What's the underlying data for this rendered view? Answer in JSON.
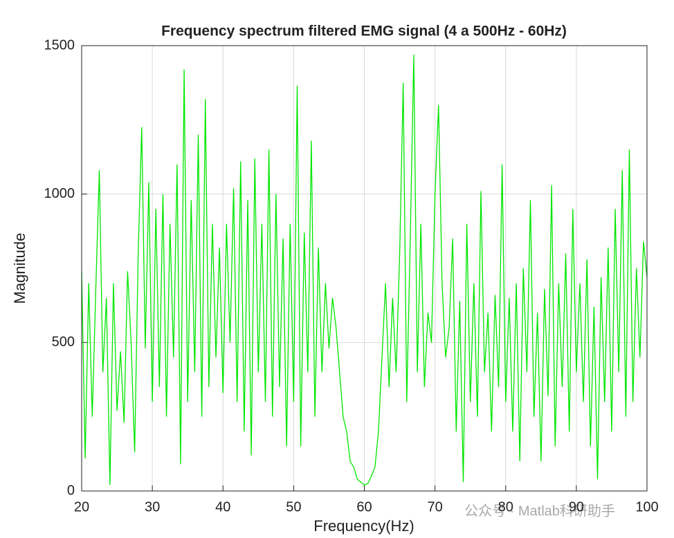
{
  "chart_data": {
    "type": "line",
    "title": "Frequency spectrum filtered EMG signal (4 a 500Hz - 60Hz)",
    "xlabel": "Frequency(Hz)",
    "ylabel": "Magnitude",
    "annotation": "公众号 · Matlab科研助手",
    "xlim": [
      20,
      100
    ],
    "ylim": [
      0,
      1500
    ],
    "xticks": [
      20,
      30,
      40,
      50,
      60,
      70,
      80,
      90,
      100
    ],
    "yticks": [
      0,
      500,
      1000,
      1500
    ],
    "grid": true,
    "series": [
      {
        "color": "#00e600",
        "x": [
          20,
          20.5,
          21,
          21.5,
          22,
          22.5,
          23,
          23.5,
          24,
          24.5,
          25,
          25.5,
          26,
          26.5,
          27,
          27.5,
          28,
          28.5,
          29,
          29.5,
          30,
          30.5,
          31,
          31.5,
          32,
          32.5,
          33,
          33.5,
          34,
          34.5,
          35,
          35.5,
          36,
          36.5,
          37,
          37.5,
          38,
          38.5,
          39,
          39.5,
          40,
          40.5,
          41,
          41.5,
          42,
          42.5,
          43,
          43.5,
          44,
          44.5,
          45,
          45.5,
          46,
          46.5,
          47,
          47.5,
          48,
          48.5,
          49,
          49.5,
          50,
          50.5,
          51,
          51.5,
          52,
          52.5,
          53,
          53.5,
          54,
          54.5,
          55,
          55.5,
          56,
          56.5,
          57,
          57.5,
          58,
          58.5,
          59,
          59.5,
          60,
          60.5,
          61,
          61.5,
          62,
          62.5,
          63,
          63.5,
          64,
          64.5,
          65,
          65.5,
          66,
          66.5,
          67,
          67.5,
          68,
          68.5,
          69,
          69.5,
          70,
          70.5,
          71,
          71.5,
          72,
          72.5,
          73,
          73.5,
          74,
          74.5,
          75,
          75.5,
          76,
          76.5,
          77,
          77.5,
          78,
          78.5,
          79,
          79.5,
          80,
          80.5,
          81,
          81.5,
          82,
          82.5,
          83,
          83.5,
          84,
          84.5,
          85,
          85.5,
          86,
          86.5,
          87,
          87.5,
          88,
          88.5,
          89,
          89.5,
          90,
          90.5,
          91,
          91.5,
          92,
          92.5,
          93,
          93.5,
          94,
          94.5,
          95,
          95.5,
          96,
          96.5,
          97,
          97.5,
          98,
          98.5,
          99,
          99.5,
          100
        ],
        "values": [
          740,
          110,
          700,
          250,
          680,
          1080,
          400,
          650,
          20,
          700,
          270,
          470,
          230,
          740,
          500,
          130,
          800,
          1225,
          480,
          1040,
          300,
          950,
          350,
          1000,
          250,
          900,
          450,
          1100,
          90,
          1420,
          300,
          980,
          400,
          1200,
          250,
          1320,
          350,
          900,
          450,
          820,
          330,
          900,
          500,
          1020,
          300,
          1110,
          200,
          980,
          120,
          1120,
          400,
          900,
          300,
          1150,
          250,
          1000,
          350,
          850,
          150,
          900,
          300,
          1365,
          150,
          870,
          400,
          1180,
          250,
          820,
          400,
          700,
          480,
          650,
          550,
          400,
          250,
          200,
          100,
          80,
          40,
          30,
          20,
          25,
          50,
          80,
          200,
          450,
          700,
          350,
          650,
          400,
          800,
          1375,
          300,
          850,
          1470,
          400,
          900,
          350,
          600,
          500,
          1000,
          1300,
          700,
          450,
          550,
          850,
          200,
          640,
          30,
          900,
          300,
          700,
          250,
          1010,
          400,
          600,
          200,
          660,
          350,
          1100,
          300,
          650,
          200,
          700,
          100,
          750,
          400,
          980,
          250,
          600,
          100,
          680,
          320,
          1030,
          150,
          700,
          350,
          800,
          200,
          950,
          400,
          700,
          300,
          780,
          150,
          620,
          40,
          720,
          300,
          820,
          200,
          950,
          400,
          1080,
          250,
          1150,
          300,
          750,
          450,
          840,
          720
        ]
      }
    ]
  }
}
